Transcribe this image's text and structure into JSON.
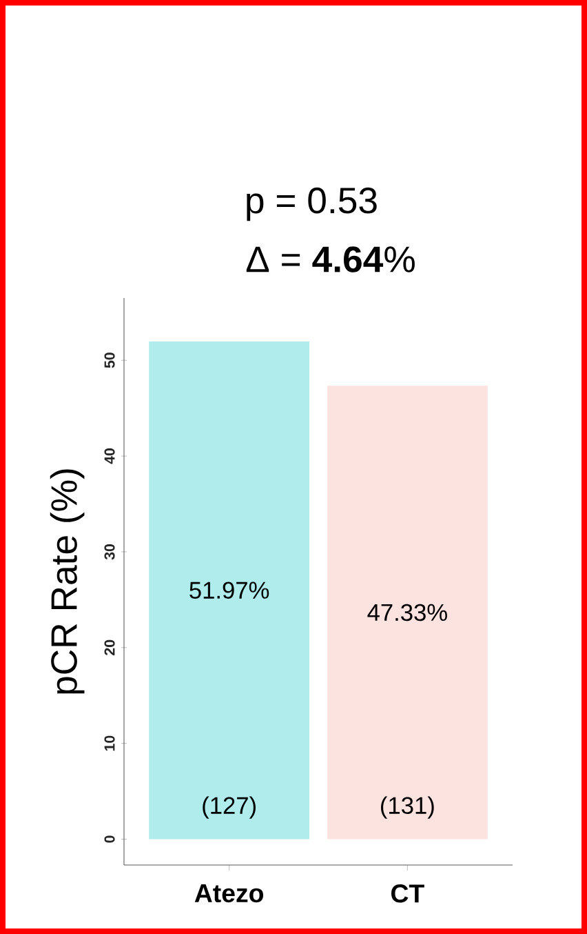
{
  "chart_data": {
    "type": "bar",
    "title": "p = 0.53",
    "subtitle": "Δ = **4.64**%",
    "ylabel": "pCR Rate (%)",
    "categories": [
      "Atezo",
      "CT"
    ],
    "values": [
      51.97,
      47.33
    ],
    "colors": [
      "#b0ecec",
      "#fde3e0"
    ],
    "value_labels": [
      "51.97%",
      "47.33%"
    ],
    "annotations": [
      "(127)",
      "(131)"
    ],
    "ylim": [
      -2.7,
      56.5
    ],
    "yticks": [
      0,
      10,
      20,
      30,
      40,
      50
    ],
    "grid": false
  }
}
